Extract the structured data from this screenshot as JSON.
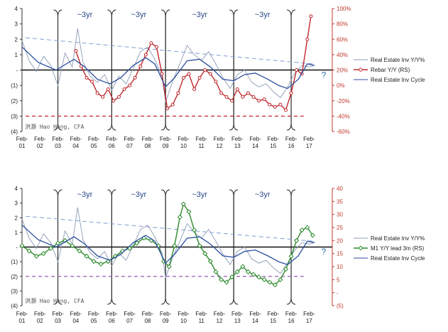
{
  "watermark": "洪灏 Hao Hong, CFA",
  "colors": {
    "re_yy": "#8c9bb5",
    "cycle": "#2b4f9e",
    "trend": "#7f9fd4",
    "rebar": "#c0282d",
    "m1": "#2e8b2e",
    "cutoff_top": "#c0282d",
    "cutoff_bottom": "#9b59b6"
  },
  "chart_data": [
    {
      "type": "line",
      "x_ticks_top": [
        "Feb-",
        "Feb-",
        "Feb-",
        "Feb-",
        "Feb-",
        "Feb-",
        "Feb-",
        "Feb-",
        "Feb-",
        "Feb-",
        "Feb-",
        "Feb-",
        "Feb-",
        "Feb-",
        "Feb-",
        "Feb-",
        "Feb-"
      ],
      "x_ticks_bottom": [
        "01",
        "02",
        "03",
        "04",
        "05",
        "06",
        "07",
        "08",
        "09",
        "10",
        "11",
        "12",
        "13",
        "14",
        "15",
        "16",
        "17"
      ],
      "ylim": [
        -4,
        4
      ],
      "y_ticks": [
        "4",
        "3",
        "2",
        "1",
        "-",
        "(1)",
        "(2)",
        "(3)",
        "(4)"
      ],
      "y2lim": [
        -60,
        100
      ],
      "y2_ticks": [
        "100%",
        "80%",
        "60%",
        "40%",
        "20%",
        "0%",
        "-20%",
        "-40%",
        "-60%"
      ],
      "cycle_labels": [
        "~3yr",
        "~3yr",
        "~3yr",
        "~3yr"
      ],
      "series": [
        {
          "name": "Real Estate Inv Y/Y%",
          "x": [
            2001.1,
            2001.5,
            2001.9,
            2002.3,
            2002.7,
            2003.1,
            2003.5,
            2003.9,
            2004.2,
            2004.5,
            2004.9,
            2005.3,
            2005.7,
            2006.1,
            2006.5,
            2006.9,
            2007.3,
            2007.7,
            2008.1,
            2008.5,
            2008.9,
            2009.1,
            2009.5,
            2009.9,
            2010.3,
            2010.7,
            2011.1,
            2011.5,
            2011.9,
            2012.3,
            2012.7,
            2013.1,
            2013.5,
            2013.9,
            2014.3,
            2014.7,
            2015.1,
            2015.5,
            2015.9,
            2016.3,
            2016.7,
            2017.1,
            2017.4
          ],
          "values": [
            1.9,
            0.6,
            -0.1,
            0.9,
            0.3,
            -1.0,
            1.1,
            0.2,
            2.7,
            0.5,
            -0.4,
            -0.8,
            -0.3,
            -1.3,
            -0.4,
            -0.9,
            0.1,
            1.2,
            1.5,
            0.7,
            -0.4,
            -2.1,
            -0.7,
            0.4,
            1.6,
            1.0,
            0.6,
            1.2,
            0.4,
            -0.5,
            -1.2,
            -0.3,
            0.0,
            -0.8,
            -1.1,
            -0.9,
            -1.4,
            -1.8,
            -1.1,
            -0.2,
            0.3,
            0.2,
            0.3
          ]
        },
        {
          "name": "Rebar Y/Y (RS)",
          "x": [
            2004.1,
            2004.4,
            2004.7,
            2005.0,
            2005.3,
            2005.6,
            2005.9,
            2006.2,
            2006.5,
            2006.8,
            2007.1,
            2007.4,
            2007.7,
            2008.0,
            2008.3,
            2008.6,
            2008.9,
            2009.2,
            2009.5,
            2009.8,
            2010.1,
            2010.4,
            2010.7,
            2011.0,
            2011.3,
            2011.6,
            2011.9,
            2012.2,
            2012.5,
            2012.8,
            2013.1,
            2013.4,
            2013.7,
            2014.0,
            2014.3,
            2014.6,
            2014.9,
            2015.2,
            2015.5,
            2015.8,
            2016.1,
            2016.4,
            2016.7,
            2017.0,
            2017.2
          ],
          "values": [
            45,
            25,
            10,
            5,
            -10,
            -15,
            -5,
            -20,
            -15,
            -5,
            0,
            10,
            25,
            40,
            55,
            50,
            15,
            -30,
            -25,
            -10,
            10,
            15,
            -5,
            10,
            20,
            15,
            5,
            -10,
            -15,
            -20,
            -5,
            -15,
            -10,
            -15,
            -20,
            -18,
            -25,
            -28,
            -25,
            -32,
            -10,
            20,
            15,
            60,
            90
          ]
        },
        {
          "name": "Real Estate Inv Cycle",
          "x": [
            2001.1,
            2002.0,
            2003.0,
            2004.0,
            2004.6,
            2005.3,
            2006.0,
            2006.6,
            2007.3,
            2008.0,
            2008.5,
            2009.1,
            2009.6,
            2010.3,
            2011.0,
            2011.6,
            2012.3,
            2012.9,
            2013.5,
            2014.1,
            2014.8,
            2015.4,
            2015.9,
            2016.5,
            2017.0,
            2017.4
          ],
          "values": [
            1.5,
            0.5,
            0.0,
            0.7,
            0.2,
            -0.6,
            -0.9,
            -0.5,
            0.3,
            0.8,
            0.4,
            -1.1,
            -0.5,
            0.6,
            0.7,
            0.2,
            -0.6,
            -0.7,
            -0.3,
            -0.2,
            -0.6,
            -1.0,
            -1.2,
            -0.6,
            0.4,
            0.3
          ]
        }
      ],
      "ylabel": "",
      "xlabel": "",
      "grid": false,
      "legend": "right"
    },
    {
      "type": "line",
      "x_ticks_top": [
        "Feb-",
        "Feb-",
        "Feb-",
        "Feb-",
        "Feb-",
        "Feb-",
        "Feb-",
        "Feb-",
        "Feb-",
        "Feb-",
        "Feb-",
        "Feb-",
        "Feb-",
        "Feb-",
        "Feb-",
        "Feb-",
        "Feb-"
      ],
      "x_ticks_bottom": [
        "01",
        "02",
        "03",
        "04",
        "05",
        "06",
        "07",
        "08",
        "09",
        "10",
        "11",
        "12",
        "13",
        "14",
        "15",
        "16",
        "17"
      ],
      "ylim": [
        -4,
        4
      ],
      "y_ticks": [
        "4",
        "3",
        "2",
        "1",
        "-",
        "(1)",
        "(2)",
        "(3)",
        "(4)"
      ],
      "y2lim": [
        -5,
        40
      ],
      "y2_ticks": [
        "40",
        "35",
        "30",
        "25",
        "20",
        "15",
        "10",
        "5",
        "-",
        "(5)"
      ],
      "cycle_labels": [
        "~3yr",
        "~3yr",
        "~3yr",
        "~3yr"
      ],
      "series": [
        {
          "name": "Real Estate Inv Y/Y%",
          "x": [
            2001.1,
            2001.5,
            2001.9,
            2002.3,
            2002.7,
            2003.1,
            2003.5,
            2003.9,
            2004.2,
            2004.5,
            2004.9,
            2005.3,
            2005.7,
            2006.1,
            2006.5,
            2006.9,
            2007.3,
            2007.7,
            2008.1,
            2008.5,
            2008.9,
            2009.1,
            2009.5,
            2009.9,
            2010.3,
            2010.7,
            2011.1,
            2011.5,
            2011.9,
            2012.3,
            2012.7,
            2013.1,
            2013.5,
            2013.9,
            2014.3,
            2014.7,
            2015.1,
            2015.5,
            2015.9,
            2016.3,
            2016.7,
            2017.1,
            2017.4
          ],
          "values": [
            1.9,
            0.6,
            -0.1,
            0.9,
            0.3,
            -1.0,
            1.1,
            0.2,
            2.7,
            0.5,
            -0.4,
            -0.8,
            -0.3,
            -1.3,
            -0.4,
            -0.9,
            0.1,
            1.2,
            1.5,
            0.7,
            -0.4,
            -2.1,
            -0.7,
            0.4,
            1.6,
            1.0,
            0.6,
            1.2,
            0.4,
            -0.5,
            -1.2,
            -0.3,
            0.0,
            -0.8,
            -1.1,
            -0.9,
            -1.4,
            -1.8,
            -1.1,
            -0.2,
            0.3,
            0.2,
            0.3
          ]
        },
        {
          "name": "M1 Y/Y lead 3m (RS)",
          "x": [
            2001.1,
            2001.5,
            2001.9,
            2002.3,
            2002.7,
            2003.1,
            2003.5,
            2003.9,
            2004.3,
            2004.7,
            2005.1,
            2005.5,
            2005.9,
            2006.3,
            2006.7,
            2007.1,
            2007.5,
            2007.9,
            2008.3,
            2008.7,
            2009.0,
            2009.3,
            2009.6,
            2009.9,
            2010.1,
            2010.4,
            2010.7,
            2011.0,
            2011.3,
            2011.6,
            2011.9,
            2012.2,
            2012.5,
            2012.8,
            2013.1,
            2013.4,
            2013.7,
            2014.0,
            2014.3,
            2014.6,
            2014.9,
            2015.2,
            2015.5,
            2015.8,
            2016.1,
            2016.4,
            2016.7,
            2017.0,
            2017.3
          ],
          "values": [
            18,
            16,
            14,
            15,
            17,
            19,
            20,
            18,
            16,
            14,
            12,
            11,
            12,
            14,
            16,
            17,
            19,
            21,
            20,
            18,
            12,
            10,
            18,
            29,
            34,
            31,
            24,
            18,
            15,
            12,
            8,
            5,
            4,
            6,
            8,
            10,
            8,
            7,
            6,
            5,
            4,
            3,
            5,
            9,
            14,
            20,
            24,
            25,
            22
          ]
        },
        {
          "name": "Real Estate Inv Cycle",
          "x": [
            2001.1,
            2002.0,
            2003.0,
            2004.0,
            2004.6,
            2005.3,
            2006.0,
            2006.6,
            2007.3,
            2008.0,
            2008.5,
            2009.1,
            2009.6,
            2010.3,
            2011.0,
            2011.6,
            2012.3,
            2012.9,
            2013.5,
            2014.1,
            2014.8,
            2015.4,
            2015.9,
            2016.5,
            2017.0,
            2017.4
          ],
          "values": [
            1.5,
            0.5,
            0.0,
            0.7,
            0.2,
            -0.6,
            -0.9,
            -0.5,
            0.3,
            0.8,
            0.4,
            -1.1,
            -0.5,
            0.6,
            0.7,
            0.2,
            -0.6,
            -0.7,
            -0.3,
            -0.2,
            -0.6,
            -1.0,
            -1.2,
            -0.6,
            0.4,
            0.3
          ]
        }
      ],
      "ylabel": "",
      "xlabel": "",
      "grid": false,
      "legend": "right"
    }
  ]
}
